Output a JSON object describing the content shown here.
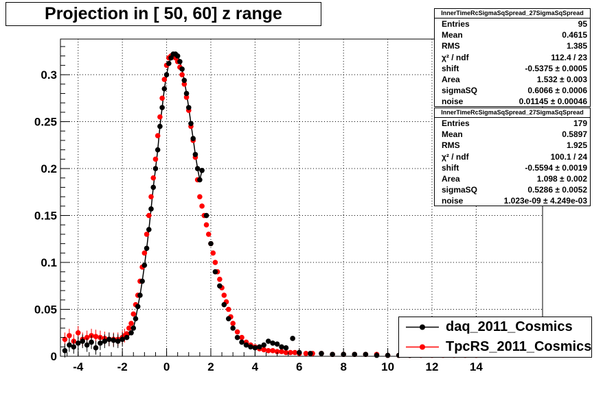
{
  "title": "Projection in [  50,  60] z range",
  "stats": [
    {
      "header": "InnerTimeRcSigmaSqSpread_27SigmaSqSpread",
      "rows": [
        {
          "label": "Entries",
          "value": "95"
        },
        {
          "label": "Mean",
          "value": "0.4615"
        },
        {
          "label": "RMS",
          "value": "1.385"
        },
        {
          "label": "χ² / ndf",
          "value": "112.4 / 23"
        },
        {
          "label": "shift",
          "value": "-0.5375 ± 0.0005"
        },
        {
          "label": "Area",
          "value": "1.532 ± 0.003"
        },
        {
          "label": "sigmaSQ",
          "value": "0.6066 ± 0.0006"
        },
        {
          "label": "noise",
          "value": "0.01145 ± 0.00046"
        }
      ]
    },
    {
      "header": "InnerTimeRcSigmaSqSpread_27SigmaSqSpread",
      "rows": [
        {
          "label": "Entries",
          "value": "179"
        },
        {
          "label": "Mean",
          "value": "0.5897"
        },
        {
          "label": "RMS",
          "value": "1.925"
        },
        {
          "label": "χ² / ndf",
          "value": "100.1 / 24"
        },
        {
          "label": "shift",
          "value": "-0.5594 ± 0.0019"
        },
        {
          "label": "Area",
          "value": "1.098 ± 0.002"
        },
        {
          "label": "sigmaSQ",
          "value": "0.5286 ± 0.0052"
        },
        {
          "label": "noise",
          "value": "1.023e-09 ± 4.249e-03"
        }
      ]
    }
  ],
  "legend": [
    "daq_2011_Cosmics",
    "TpcRS_2011_Cosmics"
  ],
  "colors": {
    "daq": "#000000",
    "tpcrs": "#ff0000"
  },
  "chart_data": {
    "type": "scatter",
    "title": "Projection in [  50,  60] z range",
    "xlabel": "",
    "ylabel": "",
    "xlim": [
      -4.8,
      17
    ],
    "ylim": [
      0,
      0.338
    ],
    "x_ticks": [
      -4,
      -2,
      0,
      2,
      4,
      6,
      8,
      10,
      12,
      14
    ],
    "y_ticks": [
      0,
      0.05,
      0.1,
      0.15,
      0.2,
      0.25,
      0.3
    ],
    "y_tick_labels": [
      "0",
      "0.05",
      "0.1",
      "0.15",
      "0.2",
      "0.25",
      "0.3"
    ],
    "grid": true,
    "legend_position": "bottom-right",
    "series": [
      {
        "name": "daq_2011_Cosmics",
        "color": "#000000",
        "x": [
          -4.6,
          -4.4,
          -4.2,
          -4.0,
          -3.8,
          -3.6,
          -3.4,
          -3.2,
          -3.0,
          -2.8,
          -2.6,
          -2.4,
          -2.2,
          -2.0,
          -1.8,
          -1.6,
          -1.5,
          -1.4,
          -1.3,
          -1.2,
          -1.1,
          -1.0,
          -0.9,
          -0.8,
          -0.7,
          -0.6,
          -0.5,
          -0.4,
          -0.3,
          -0.2,
          -0.1,
          0.0,
          0.1,
          0.2,
          0.3,
          0.4,
          0.5,
          0.6,
          0.7,
          0.8,
          0.9,
          1.0,
          1.1,
          1.2,
          1.3,
          1.4,
          1.5,
          1.6,
          1.8,
          2.0,
          2.2,
          2.4,
          2.6,
          2.8,
          3.0,
          3.2,
          3.4,
          3.6,
          3.8,
          4.0,
          4.2,
          4.4,
          4.6,
          4.8,
          5.0,
          5.2,
          5.4,
          5.7,
          6.0,
          6.5,
          7.0,
          7.5,
          8.0,
          8.5,
          9.0,
          9.5,
          10.0,
          10.5,
          11.0
        ],
        "y": [
          0.006,
          0.012,
          0.01,
          0.014,
          0.016,
          0.012,
          0.015,
          0.009,
          0.014,
          0.016,
          0.018,
          0.017,
          0.016,
          0.018,
          0.02,
          0.025,
          0.03,
          0.04,
          0.053,
          0.065,
          0.08,
          0.097,
          0.115,
          0.135,
          0.157,
          0.18,
          0.2,
          0.22,
          0.245,
          0.265,
          0.285,
          0.3,
          0.312,
          0.318,
          0.322,
          0.322,
          0.32,
          0.314,
          0.306,
          0.294,
          0.28,
          0.265,
          0.248,
          0.232,
          0.215,
          0.2,
          0.188,
          0.198,
          0.15,
          0.12,
          0.09,
          0.075,
          0.055,
          0.04,
          0.03,
          0.02,
          0.015,
          0.012,
          0.01,
          0.009,
          0.01,
          0.012,
          0.016,
          0.014,
          0.013,
          0.01,
          0.009,
          0.019,
          0.004,
          0.003,
          0.003,
          0.002,
          0.002,
          0.002,
          0.002,
          0.001,
          0.001,
          0.001,
          0.001
        ]
      },
      {
        "name": "TpcRS_2011_Cosmics",
        "color": "#ff0000",
        "x": [
          -4.6,
          -4.4,
          -4.2,
          -4.0,
          -3.8,
          -3.6,
          -3.4,
          -3.2,
          -3.0,
          -2.8,
          -2.6,
          -2.4,
          -2.2,
          -2.0,
          -1.9,
          -1.8,
          -1.7,
          -1.6,
          -1.5,
          -1.4,
          -1.3,
          -1.2,
          -1.1,
          -1.0,
          -0.9,
          -0.8,
          -0.7,
          -0.6,
          -0.5,
          -0.4,
          -0.3,
          -0.2,
          -0.1,
          0.0,
          0.1,
          0.2,
          0.3,
          0.4,
          0.5,
          0.6,
          0.7,
          0.8,
          0.9,
          1.0,
          1.1,
          1.2,
          1.3,
          1.4,
          1.5,
          1.6,
          1.7,
          1.8,
          1.9,
          2.0,
          2.1,
          2.2,
          2.3,
          2.4,
          2.5,
          2.6,
          2.7,
          2.8,
          2.9,
          3.0,
          3.2,
          3.4,
          3.6,
          3.8,
          4.0,
          4.2,
          4.4,
          4.6,
          4.8,
          5.0,
          5.2,
          5.4,
          5.6,
          5.8,
          6.0,
          6.3,
          6.6,
          7.0,
          7.5,
          8.0,
          8.5,
          9.0,
          9.5,
          10.0,
          10.5,
          11.0,
          11.5,
          12.0,
          12.5,
          13.0,
          13.5,
          14.0
        ],
        "y": [
          0.018,
          0.022,
          0.016,
          0.025,
          0.018,
          0.02,
          0.022,
          0.021,
          0.02,
          0.019,
          0.018,
          0.018,
          0.018,
          0.02,
          0.022,
          0.024,
          0.03,
          0.035,
          0.045,
          0.055,
          0.065,
          0.08,
          0.095,
          0.11,
          0.13,
          0.15,
          0.17,
          0.19,
          0.21,
          0.235,
          0.255,
          0.275,
          0.295,
          0.31,
          0.318,
          0.32,
          0.32,
          0.318,
          0.314,
          0.308,
          0.3,
          0.29,
          0.276,
          0.262,
          0.245,
          0.23,
          0.212,
          0.188,
          0.17,
          0.16,
          0.15,
          0.14,
          0.13,
          0.12,
          0.11,
          0.1,
          0.09,
          0.082,
          0.073,
          0.065,
          0.058,
          0.05,
          0.042,
          0.035,
          0.026,
          0.02,
          0.015,
          0.012,
          0.01,
          0.008,
          0.007,
          0.006,
          0.006,
          0.005,
          0.005,
          0.004,
          0.004,
          0.004,
          0.003,
          0.003,
          0.003,
          0.003,
          0.002,
          0.002,
          0.002,
          0.002,
          0.002,
          0.001,
          0.001,
          0.001,
          0.001,
          0.001,
          0.001,
          0.001,
          0.001,
          0.001
        ]
      }
    ]
  }
}
